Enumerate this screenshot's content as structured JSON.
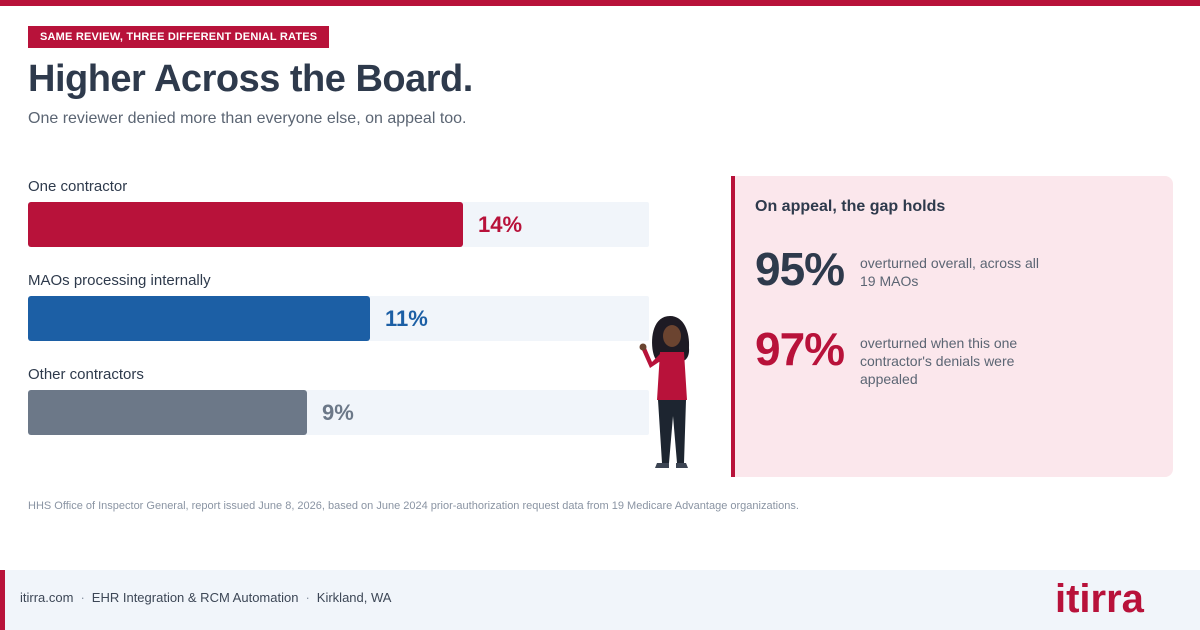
{
  "header": {
    "kicker": "SAME REVIEW, THREE DIFFERENT DENIAL RATES",
    "title": "Higher Across the Board.",
    "subtitle": "One reviewer denied more than everyone else, on appeal too."
  },
  "chart_data": {
    "type": "bar",
    "orientation": "horizontal",
    "categories": [
      "One contractor",
      "MAOs processing internally",
      "Other contractors"
    ],
    "values": [
      14,
      11,
      9
    ],
    "value_labels": [
      "14%",
      "11%",
      "9%"
    ],
    "unit": "%",
    "colors": [
      "#b8123a",
      "#1c5fa5",
      "#6c7888"
    ],
    "label_colors": [
      "#b8123a",
      "#1c5fa5",
      "#6c7888"
    ],
    "xlim": [
      0,
      20
    ],
    "grid": false
  },
  "panel": {
    "title": "On appeal, the gap holds",
    "stats": [
      {
        "value": "95%",
        "description": "overturned overall, across all 19 MAOs",
        "color": "#2e3a4c"
      },
      {
        "value": "97%",
        "description": "overturned when this one contractor's denials were appealed",
        "color": "#b8123a"
      }
    ]
  },
  "source": "HHS Office of Inspector General, report issued June 8, 2026, based on June 2024 prior-authorization request data from 19 Medicare Advantage organizations.",
  "footer": {
    "site": "itirra.com",
    "tagline": "EHR Integration & RCM Automation",
    "location": "Kirkland, WA",
    "separator": "·"
  },
  "logo": {
    "text": "itirra",
    "color": "#b8123a"
  }
}
